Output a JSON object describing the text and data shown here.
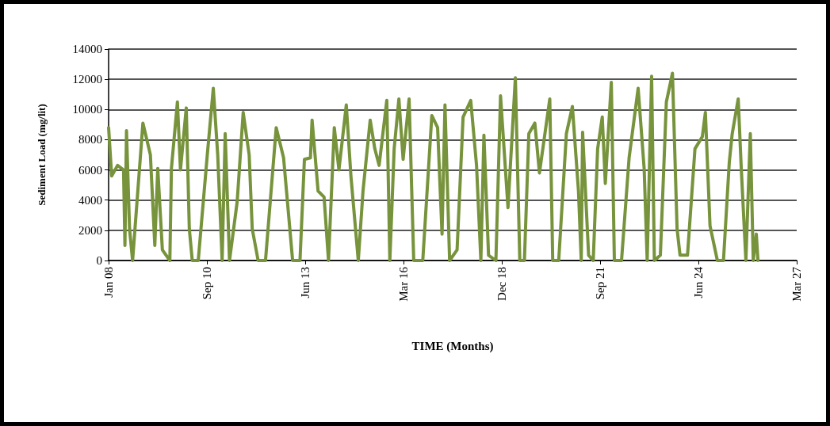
{
  "chart_data": {
    "type": "line",
    "xlabel": "TIME (Months)",
    "ylabel": "Sediment Load (mg/lit)",
    "x": [
      "2008-01-01",
      "2008-02-01",
      "2008-04-01",
      "2008-06-01",
      "2008-06-15",
      "2008-07-01",
      "2008-08-01",
      "2008-09-01",
      "2008-12-15",
      "2009-03-01",
      "2009-04-15",
      "2009-05-15",
      "2009-07-01",
      "2009-09-15",
      "2009-10-01",
      "2009-12-01",
      "2010-01-01",
      "2010-03-01",
      "2010-04-01",
      "2010-05-01",
      "2010-07-01",
      "2010-10-01",
      "2010-12-01",
      "2011-01-15",
      "2011-03-01",
      "2011-04-01",
      "2011-05-15",
      "2011-08-01",
      "2011-10-01",
      "2011-12-01",
      "2012-01-01",
      "2012-03-01",
      "2012-05-15",
      "2012-09-01",
      "2012-11-15",
      "2013-02-15",
      "2013-05-01",
      "2013-06-15",
      "2013-08-15",
      "2013-09-01",
      "2013-11-01",
      "2014-01-01",
      "2014-02-15",
      "2014-04-15",
      "2014-06-01",
      "2014-08-15",
      "2014-10-01",
      "2014-12-15",
      "2015-02-01",
      "2015-04-15",
      "2015-06-01",
      "2015-07-15",
      "2015-10-01",
      "2015-11-01",
      "2015-12-15",
      "2016-02-01",
      "2016-03-15",
      "2016-05-15",
      "2016-07-01",
      "2016-10-01",
      "2017-01-01",
      "2017-03-01",
      "2017-04-15",
      "2017-05-15",
      "2017-07-01",
      "2017-09-15",
      "2017-11-15",
      "2018-02-01",
      "2018-04-01",
      "2018-05-15",
      "2018-06-15",
      "2018-08-01",
      "2018-10-15",
      "2018-12-01",
      "2019-02-15",
      "2019-05-01",
      "2019-06-15",
      "2019-08-01",
      "2019-09-15",
      "2019-11-15",
      "2020-01-01",
      "2020-04-15",
      "2020-05-15",
      "2020-07-15",
      "2020-10-01",
      "2020-12-01",
      "2021-02-01",
      "2021-03-01",
      "2021-03-15",
      "2021-05-15",
      "2021-07-01",
      "2021-08-15",
      "2021-10-01",
      "2021-11-01",
      "2022-01-01",
      "2022-02-01",
      "2022-04-15",
      "2022-07-01",
      "2022-10-01",
      "2022-12-01",
      "2023-01-01",
      "2023-02-15",
      "2023-03-15",
      "2023-05-15",
      "2023-07-15",
      "2023-09-15",
      "2023-11-01",
      "2023-12-01",
      "2024-02-15",
      "2024-05-01",
      "2024-07-15",
      "2024-08-15",
      "2024-10-01",
      "2024-12-15",
      "2025-02-15",
      "2025-04-15",
      "2025-05-15",
      "2025-07-15",
      "2025-08-15",
      "2025-10-01",
      "2025-11-15",
      "2025-12-15",
      "2026-01-15",
      "2026-02-01"
    ],
    "series": [
      {
        "color": "#77933c",
        "values": [
          8800,
          5600,
          6300,
          6000,
          1000,
          8600,
          2100,
          0,
          9100,
          7000,
          1000,
          6100,
          700,
          0,
          6100,
          10500,
          6000,
          10100,
          2100,
          0,
          0,
          7000,
          11400,
          7000,
          0,
          8400,
          0,
          3900,
          9800,
          7000,
          2100,
          0,
          0,
          8800,
          6800,
          0,
          0,
          6700,
          6800,
          9300,
          4600,
          4200,
          0,
          8800,
          6000,
          10300,
          5600,
          0,
          4600,
          9300,
          7400,
          6300,
          10600,
          0,
          7400,
          10700,
          6700,
          10700,
          0,
          0,
          9600,
          8800,
          1750,
          10300,
          0,
          700,
          9500,
          10600,
          6300,
          0,
          8300,
          350,
          0,
          10900,
          3500,
          12100,
          0,
          0,
          8400,
          9100,
          5800,
          10700,
          0,
          0,
          8400,
          10200,
          4600,
          0,
          8500,
          350,
          0,
          7400,
          9500,
          5100,
          11800,
          0,
          0,
          6800,
          11400,
          6100,
          0,
          12200,
          0,
          350,
          10500,
          12400,
          2100,
          350,
          350,
          7400,
          8200,
          9800,
          2300,
          0,
          0,
          6500,
          8400,
          10700,
          6100,
          0,
          8400,
          0,
          1750,
          0
        ]
      }
    ],
    "xlim": [
      "2008-01-01",
      "2027-03-02"
    ],
    "xticks": [
      {
        "value": "2008-01-01",
        "label": "Jan 08"
      },
      {
        "value": "2010-09-27",
        "label": "Sep 10"
      },
      {
        "value": "2013-06-23",
        "label": "Jun 13"
      },
      {
        "value": "2016-03-19",
        "label": "Mar 16"
      },
      {
        "value": "2018-12-14",
        "label": "Dec 18"
      },
      {
        "value": "2021-09-09",
        "label": "Sep 21"
      },
      {
        "value": "2024-06-05",
        "label": "Jun 24"
      },
      {
        "value": "2027-03-02",
        "label": "Mar 27"
      }
    ],
    "ylim": [
      0,
      14000
    ],
    "yticks": [
      0,
      2000,
      4000,
      6000,
      8000,
      10000,
      12000,
      14000
    ],
    "grid": "y",
    "marker": "none",
    "line_style": "solid"
  }
}
